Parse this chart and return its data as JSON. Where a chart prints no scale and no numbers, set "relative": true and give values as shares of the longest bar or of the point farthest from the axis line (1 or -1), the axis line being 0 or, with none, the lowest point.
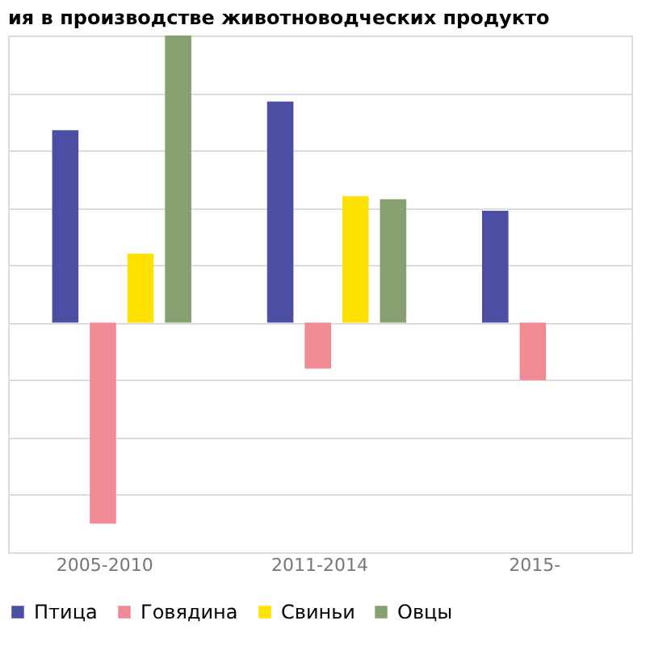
{
  "chart_data": {
    "type": "bar",
    "title": "ия в производстве животноводческих продукто",
    "relative": true,
    "grid": "y",
    "legend": "bottom",
    "categories": [
      "2005-2010",
      "2011-2014",
      "2015-"
    ],
    "series": [
      {
        "name": "Птица",
        "color": "#4a4fa3",
        "values": [
          0.67,
          0.77,
          0.39
        ]
      },
      {
        "name": "Говядина",
        "color": "#f08a94",
        "values": [
          -0.7,
          -0.16,
          -0.2
        ]
      },
      {
        "name": "Свиньи",
        "color": "#fde100",
        "values": [
          0.24,
          0.44,
          null
        ]
      },
      {
        "name": "Овцы",
        "color": "#86a06f",
        "values": [
          1,
          0.43,
          null
        ]
      }
    ]
  }
}
